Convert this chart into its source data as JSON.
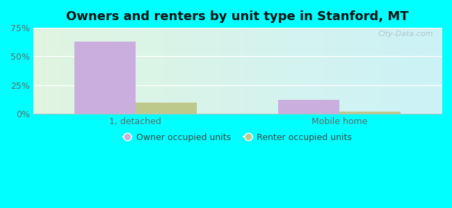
{
  "title": "Owners and renters by unit type in Stanford, MT",
  "categories": [
    "1, detached",
    "Mobile home"
  ],
  "owner_values": [
    63,
    12
  ],
  "renter_values": [
    10,
    2
  ],
  "owner_color": "#c9aede",
  "renter_color": "#bdc98a",
  "ylim": [
    0,
    75
  ],
  "yticks": [
    0,
    25,
    50,
    75
  ],
  "ytick_labels": [
    "0%",
    "25%",
    "50%",
    "75%"
  ],
  "bar_width": 0.3,
  "title_fontsize": 13,
  "legend_labels": [
    "Owner occupied units",
    "Renter occupied units"
  ],
  "watermark": "City-Data.com",
  "fig_bg": "#00ffff",
  "plot_bg_left": "#e8f5e9",
  "plot_bg_right": "#ccf5f5"
}
